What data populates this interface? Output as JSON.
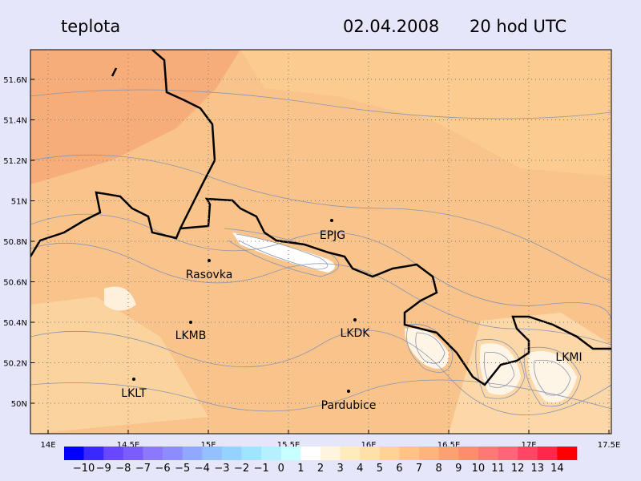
{
  "header": {
    "title": "teplota",
    "date": "02.04.2008",
    "time": "20 hod UTC"
  },
  "lat_ticks": [
    "50N",
    "50.2N",
    "50.4N",
    "50.6N",
    "50.8N",
    "51N",
    "51.2N",
    "51.4N",
    "51.6N"
  ],
  "lon_ticks": [
    "14E",
    "14.5E",
    "15E",
    "15.5E",
    "16E",
    "16.5E",
    "17E",
    "17.5E"
  ],
  "stations": [
    "EPJG",
    "Rasovka",
    "LKMB",
    "LKDK",
    "LKLT",
    "Pardubice",
    "LKMI"
  ],
  "colorbar": {
    "labels": [
      "−10",
      "−9",
      "−8",
      "−7",
      "−6",
      "−5",
      "−4",
      "−3",
      "−2",
      "−1",
      "0",
      "1",
      "2",
      "3",
      "4",
      "5",
      "6",
      "7",
      "8",
      "9",
      "10",
      "11",
      "12",
      "13",
      "14"
    ],
    "colors": [
      "#0000ff",
      "#3a28ff",
      "#6a46ff",
      "#7a5cff",
      "#8c78ff",
      "#8c8cff",
      "#90a8ff",
      "#95c0ff",
      "#96d2ff",
      "#a0e4ff",
      "#b4f0ff",
      "#c8ffff",
      "#ffffff",
      "#fff5dc",
      "#ffebbe",
      "#ffe0a8",
      "#ffd296",
      "#ffc382",
      "#ffb478",
      "#ffa070",
      "#ff8c6e",
      "#ff7878",
      "#ff6478",
      "#ff4664",
      "#ff284a",
      "#ff0000"
    ]
  }
}
